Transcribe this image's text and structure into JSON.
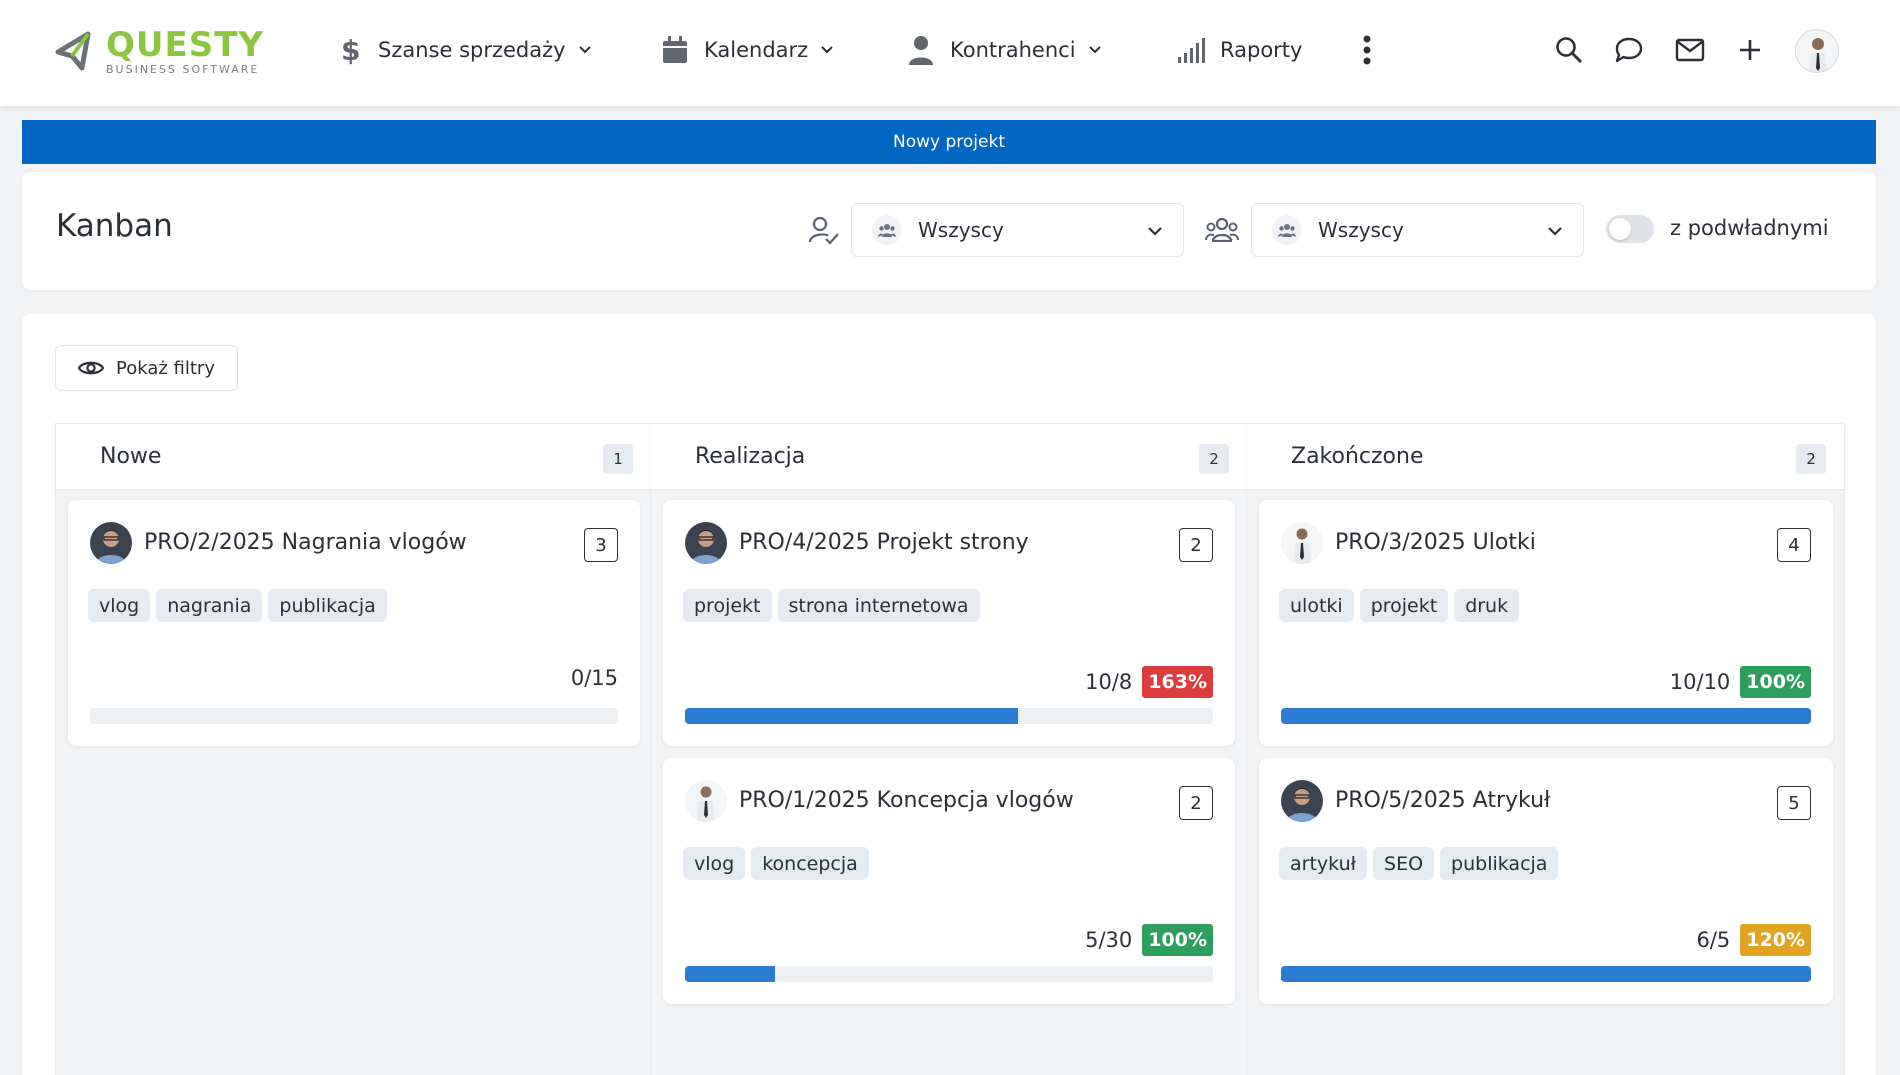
{
  "app": {
    "logo_name": "QUESTY",
    "logo_sub": "BUSINESS SOFTWARE"
  },
  "nav": {
    "items": [
      {
        "label": "Szanse sprzedaży",
        "icon": "dollar-icon"
      },
      {
        "label": "Kalendarz",
        "icon": "calendar-icon"
      },
      {
        "label": "Kontrahenci",
        "icon": "person-icon"
      },
      {
        "label": "Raporty",
        "icon": "signal-bars-icon"
      }
    ],
    "top_icons": [
      "search-icon",
      "chat-icon",
      "mail-icon",
      "plus-icon"
    ]
  },
  "banner": {
    "label": "Nowy projekt"
  },
  "header": {
    "title": "Kanban",
    "filter1_value": "Wszyscy",
    "filter2_value": "Wszyscy",
    "toggle_label": "z podwładnymi",
    "toggle_on": false
  },
  "board": {
    "show_filters_label": "Pokaż filtry",
    "columns": [
      {
        "title": "Nowe",
        "count": "1",
        "cards": [
          {
            "title": "PRO/2/2025 Nagrania vlogów",
            "count": "3",
            "tags": [
              "vlog",
              "nagrania",
              "publikacja"
            ],
            "ratio": "0/15",
            "percent": "",
            "percent_color": "",
            "progress": 0,
            "avatar": "man-dark"
          }
        ]
      },
      {
        "title": "Realizacja",
        "count": "2",
        "cards": [
          {
            "title": "PRO/4/2025 Projekt strony",
            "count": "2",
            "tags": [
              "projekt",
              "strona internetowa"
            ],
            "ratio": "10/8",
            "percent": "163%",
            "percent_color": "#dc3b3b",
            "progress": 0.63,
            "avatar": "man-dark"
          },
          {
            "title": "PRO/1/2025 Koncepcja vlogów",
            "count": "2",
            "tags": [
              "vlog",
              "koncepcja"
            ],
            "ratio": "5/30",
            "percent": "100%",
            "percent_color": "#2e9e5f",
            "progress": 0.17,
            "avatar": "man-suit"
          }
        ]
      },
      {
        "title": "Zakończone",
        "count": "2",
        "cards": [
          {
            "title": "PRO/3/2025 Ulotki",
            "count": "4",
            "tags": [
              "ulotki",
              "projekt",
              "druk"
            ],
            "ratio": "10/10",
            "percent": "100%",
            "percent_color": "#2e9e5f",
            "progress": 1.0,
            "avatar": "man-suit"
          },
          {
            "title": "PRO/5/2025 Atrykuł",
            "count": "5",
            "tags": [
              "artykuł",
              "SEO",
              "publikacja"
            ],
            "ratio": "6/5",
            "percent": "120%",
            "percent_color": "#e0a322",
            "progress": 1.0,
            "avatar": "man-dark"
          }
        ]
      }
    ]
  },
  "colors": {
    "brand_blue": "#0067c3",
    "logo_green": "#8cc63f",
    "progress_blue": "#2a7bd1"
  }
}
